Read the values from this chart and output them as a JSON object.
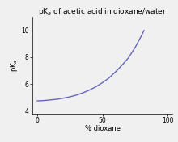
{
  "title_full": "pK$_a$ of acetic acid in dioxane/water",
  "xlabel": "% dioxane",
  "ylabel": "pK$_a$",
  "x_data": [
    0,
    5,
    10,
    15,
    20,
    25,
    30,
    35,
    40,
    45,
    50,
    55,
    60,
    65,
    70,
    75,
    80,
    82
  ],
  "y_data": [
    4.75,
    4.77,
    4.82,
    4.87,
    4.95,
    5.05,
    5.18,
    5.35,
    5.55,
    5.8,
    6.1,
    6.45,
    6.9,
    7.4,
    7.95,
    8.7,
    9.6,
    10.0
  ],
  "xlim": [
    -4,
    104
  ],
  "ylim": [
    3.8,
    11.0
  ],
  "xticks": [
    0,
    50,
    100
  ],
  "yticks": [
    4,
    6,
    8,
    10
  ],
  "line_color": "#6666bb",
  "line_width": 1.0,
  "bg_color": "#f0f0f0",
  "title_fontsize": 6.5,
  "label_fontsize": 6.0,
  "tick_fontsize": 5.5
}
